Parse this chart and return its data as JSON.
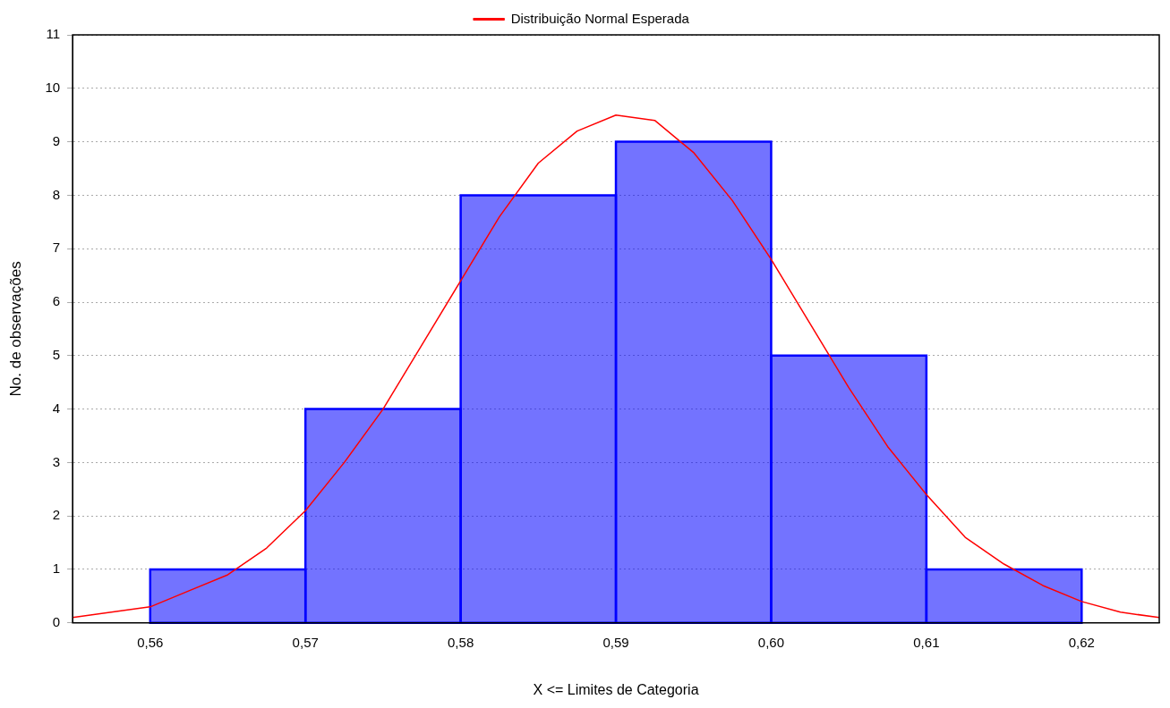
{
  "chart_data": {
    "type": "histogram",
    "xlabel": "X <= Limites de Categoria",
    "ylabel": "No. de observações",
    "bins": [
      0.56,
      0.57,
      0.58,
      0.59,
      0.6,
      0.61,
      0.62
    ],
    "values": [
      1,
      4,
      8,
      9,
      5,
      1
    ],
    "color": "#0000ff",
    "xlim": [
      0.555,
      0.625
    ],
    "xticks": [
      {
        "value": 0.56,
        "label": "0,56"
      },
      {
        "value": 0.57,
        "label": "0,57"
      },
      {
        "value": 0.58,
        "label": "0,58"
      },
      {
        "value": 0.59,
        "label": "0,59"
      },
      {
        "value": 0.6,
        "label": "0,60"
      },
      {
        "value": 0.61,
        "label": "0,61"
      },
      {
        "value": 0.62,
        "label": "0,62"
      }
    ],
    "ylim": [
      0,
      11
    ],
    "yticks": [
      0,
      1,
      2,
      3,
      4,
      5,
      6,
      7,
      8,
      9,
      10,
      11
    ],
    "grid": "y",
    "legend": "top",
    "marker": "none",
    "series": [
      {
        "type": "line",
        "name": "Distribuição Normal Esperada",
        "color": "#ff0000",
        "x": [
          0.555,
          0.5575,
          0.56,
          0.5625,
          0.565,
          0.5675,
          0.57,
          0.5725,
          0.575,
          0.5775,
          0.58,
          0.5825,
          0.585,
          0.5875,
          0.59,
          0.5925,
          0.595,
          0.5975,
          0.6,
          0.6025,
          0.605,
          0.6075,
          0.61,
          0.6125,
          0.615,
          0.6175,
          0.62,
          0.6225,
          0.625
        ],
        "values": [
          0.1,
          0.2,
          0.3,
          0.6,
          0.9,
          1.4,
          2.1,
          3.0,
          4.0,
          5.2,
          6.4,
          7.6,
          8.6,
          9.2,
          9.5,
          9.4,
          8.8,
          7.9,
          6.8,
          5.6,
          4.4,
          3.3,
          2.4,
          1.6,
          1.1,
          0.7,
          0.4,
          0.2,
          0.1
        ]
      }
    ]
  }
}
